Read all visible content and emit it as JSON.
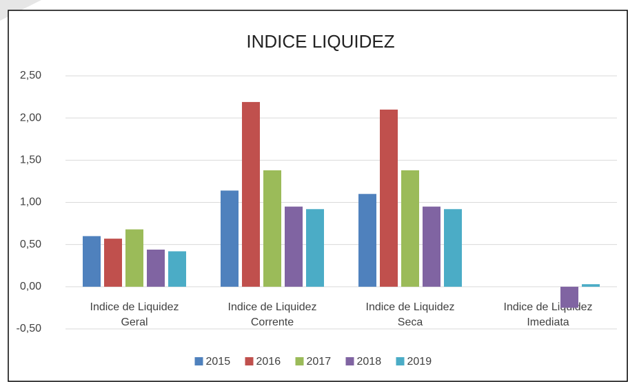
{
  "chart_data": {
    "type": "bar",
    "title": "INDICE LIQUIDEZ",
    "categories": [
      "Indice de Liquidez Geral",
      "Indice de Liquidez Corrente",
      "Indice de Liquidez Seca",
      "Indice de Liquidez Imediata"
    ],
    "series": [
      {
        "name": "2015",
        "color": "#4f81bd",
        "values": [
          0.6,
          1.14,
          1.1,
          0
        ]
      },
      {
        "name": "2016",
        "color": "#c0504d",
        "values": [
          0.57,
          2.19,
          2.1,
          0
        ]
      },
      {
        "name": "2017",
        "color": "#9bbb59",
        "values": [
          0.68,
          1.38,
          1.38,
          0
        ]
      },
      {
        "name": "2018",
        "color": "#8064a2",
        "values": [
          0.44,
          0.95,
          0.95,
          -0.25
        ]
      },
      {
        "name": "2019",
        "color": "#4bacc6",
        "values": [
          0.42,
          0.92,
          0.92,
          0.03
        ]
      }
    ],
    "ylim": [
      -0.5,
      2.5
    ],
    "yticks": [
      {
        "value": -0.5,
        "label": "-0,50"
      },
      {
        "value": 0,
        "label": "0,00"
      },
      {
        "value": 0.5,
        "label": "0,50"
      },
      {
        "value": 1,
        "label": "1,00"
      },
      {
        "value": 1.5,
        "label": "1,50"
      },
      {
        "value": 2,
        "label": "2,00"
      },
      {
        "value": 2.5,
        "label": "2,50"
      }
    ],
    "grid": true,
    "legend": "bottom"
  }
}
